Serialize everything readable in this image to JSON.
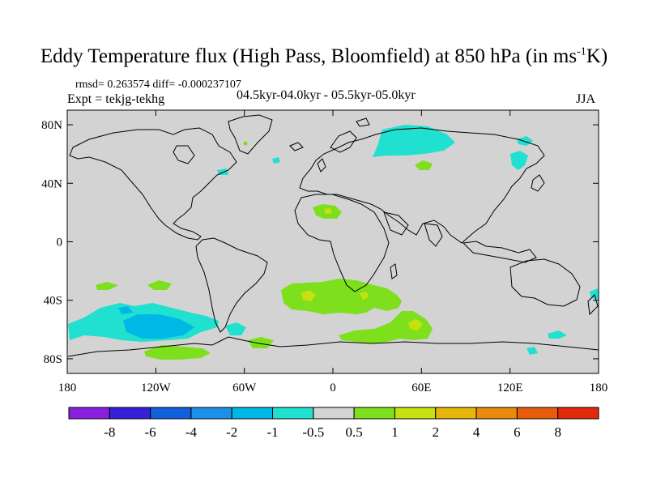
{
  "header": {
    "title_main": "Eddy Temperature flux (High Pass, Bloomfield) at 850 hPa (in ms",
    "title_sup": "-1",
    "title_end": "K)",
    "rmsd_line": "rmsd= 0.263574 diff= -0.000237107",
    "expt_line": "Expt = tekjg-tekhg",
    "period_line": "04.5kyr-04.0kyr - 05.5kyr-05.0kyr",
    "season": "JJA"
  },
  "map": {
    "projection": "cylindrical-equidistant",
    "lon_range": [
      -180,
      180
    ],
    "lat_range": [
      -90,
      90
    ],
    "ocean_land_fill": "#d3d3d3",
    "lat_labels": [
      {
        "lat": 80,
        "text": "80N"
      },
      {
        "lat": 40,
        "text": "40N"
      },
      {
        "lat": 0,
        "text": "0"
      },
      {
        "lat": -40,
        "text": "40S"
      },
      {
        "lat": -80,
        "text": "80S"
      }
    ],
    "lon_labels": [
      {
        "lon": -180,
        "text": "180"
      },
      {
        "lon": -120,
        "text": "120W"
      },
      {
        "lon": -60,
        "text": "60W"
      },
      {
        "lon": 0,
        "text": "0"
      },
      {
        "lon": 60,
        "text": "60E"
      },
      {
        "lon": 120,
        "text": "120E"
      },
      {
        "lon": 180,
        "text": "180"
      }
    ]
  },
  "colorbar": {
    "labels": [
      "-8",
      "-6",
      "-4",
      "-2",
      "-1",
      "-0.5",
      "0.5",
      "1",
      "2",
      "4",
      "6",
      "8"
    ],
    "colors": [
      "#8b1fe0",
      "#3320d8",
      "#1160dc",
      "#1a90e8",
      "#00b8e6",
      "#20e0d0",
      "#d3d3d3",
      "#7ee01c",
      "#c8e010",
      "#e6b70a",
      "#e88a0a",
      "#e85d0a",
      "#e02a0a"
    ]
  }
}
